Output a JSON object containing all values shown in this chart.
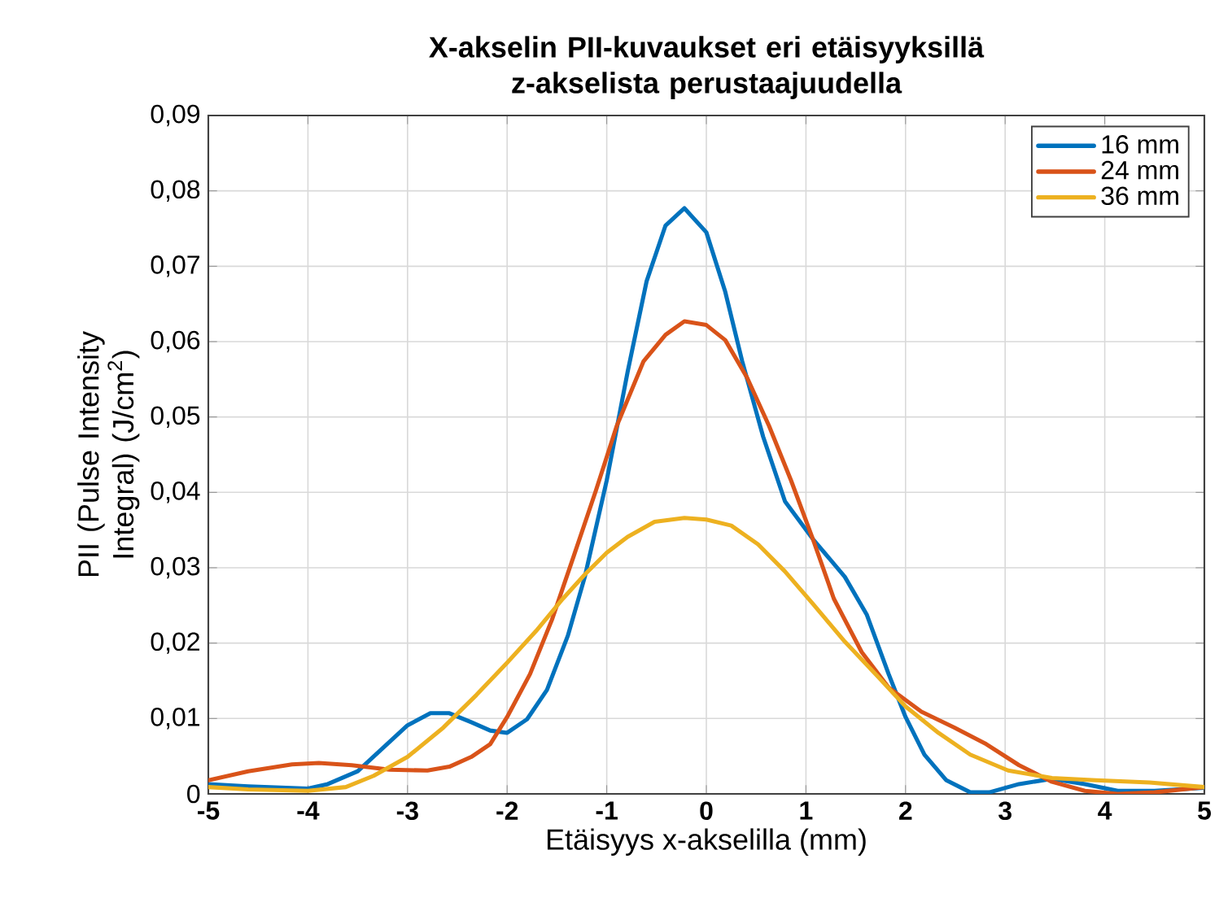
{
  "chart_data": {
    "type": "line",
    "title": "X-akselin PII-kuvaukset eri etäisyyksillä z-akselista perustaajuudella",
    "xlabel": "Etäisyys x-akselilla (mm)",
    "ylabel": "PII (Pulse Intensity Integral) (J/cm$^{2}$)",
    "xlim": [
      -5,
      5
    ],
    "xticks": [
      -5,
      -4,
      -3,
      -2,
      -1,
      0,
      1,
      2,
      3,
      4,
      5
    ],
    "ylim": [
      0,
      0.09
    ],
    "yticks": [
      0,
      {
        "value": 0.01,
        "label": "0,01"
      },
      {
        "value": 0.02,
        "label": "0,02"
      },
      {
        "value": 0.03,
        "label": "0,03"
      },
      {
        "value": 0.04,
        "label": "0,04"
      },
      {
        "value": 0.05,
        "label": "0,05"
      },
      {
        "value": 0.06,
        "label": "0,06"
      },
      {
        "value": 0.07,
        "label": "0,07"
      },
      {
        "value": 0.08,
        "label": "0,08"
      },
      {
        "value": 0.09,
        "label": "0,09"
      }
    ],
    "grid": true,
    "legend": "top right",
    "line_style": "solid",
    "series": [
      {
        "name": "16 mm",
        "color": "#0072bd",
        "x": [
          -5,
          -4.6,
          -4,
          -3.8,
          -3.5,
          -3.23,
          -3,
          -2.77,
          -2.58,
          -2.36,
          -2.17,
          -2,
          -1.8,
          -1.6,
          -1.39,
          -1.22,
          -1,
          -0.79,
          -0.6,
          -0.41,
          -0.22,
          0,
          0.19,
          0.36,
          0.57,
          0.79,
          1.07,
          1.39,
          1.61,
          1.83,
          2.0,
          2.19,
          2.41,
          2.65,
          2.84,
          3.14,
          3.47,
          3.8,
          4.13,
          4.5,
          5
        ],
        "values": [
          0.0013,
          0.001,
          0.0007,
          0.0013,
          0.003,
          0.0063,
          0.0091,
          0.0107,
          0.0107,
          0.0095,
          0.0084,
          0.0081,
          0.0099,
          0.0138,
          0.021,
          0.0288,
          0.0416,
          0.056,
          0.068,
          0.0754,
          0.0777,
          0.0745,
          0.0666,
          0.0574,
          0.0474,
          0.0388,
          0.0338,
          0.0288,
          0.0238,
          0.0159,
          0.0102,
          0.0052,
          0.0018,
          0.0002,
          0.0002,
          0.0013,
          0.002,
          0.0013,
          0.0004,
          0.0004,
          0.0008
        ]
      },
      {
        "name": "24 mm",
        "color": "#d95319",
        "x": [
          -5,
          -4.6,
          -4.16,
          -3.89,
          -3.56,
          -3.18,
          -2.8,
          -2.58,
          -2.36,
          -2.17,
          -2,
          -1.77,
          -1.55,
          -1.33,
          -1.11,
          -0.9,
          -0.63,
          -0.41,
          -0.22,
          0,
          0.19,
          0.41,
          0.63,
          0.85,
          1.07,
          1.28,
          1.56,
          1.83,
          2.16,
          2.49,
          2.81,
          3.14,
          3.47,
          3.8,
          4.13,
          4.5,
          5
        ],
        "values": [
          0.0018,
          0.003,
          0.0039,
          0.0041,
          0.0038,
          0.0032,
          0.0031,
          0.0036,
          0.0049,
          0.0066,
          0.0102,
          0.0159,
          0.0231,
          0.0316,
          0.0402,
          0.0488,
          0.0574,
          0.0609,
          0.0627,
          0.0622,
          0.0602,
          0.0552,
          0.0488,
          0.0416,
          0.0338,
          0.0259,
          0.0188,
          0.0141,
          0.0109,
          0.0088,
          0.0066,
          0.0038,
          0.0016,
          0.0004,
          0,
          0.0002,
          0.0009
        ]
      },
      {
        "name": "36 mm",
        "color": "#edb120",
        "x": [
          -5,
          -4.6,
          -4,
          -3.62,
          -3.34,
          -3,
          -2.64,
          -2.31,
          -2,
          -1.71,
          -1.44,
          -1.22,
          -1,
          -0.79,
          -0.52,
          -0.22,
          0,
          0.25,
          0.52,
          0.79,
          1.07,
          1.39,
          1.72,
          2,
          2.33,
          2.65,
          3.03,
          3.47,
          3.91,
          4.45,
          5
        ],
        "values": [
          0.0009,
          0.0006,
          0.0004,
          0.0009,
          0.0024,
          0.0049,
          0.0088,
          0.0131,
          0.0174,
          0.0216,
          0.0259,
          0.0291,
          0.032,
          0.0341,
          0.0361,
          0.0366,
          0.0364,
          0.0356,
          0.0331,
          0.0295,
          0.0252,
          0.0202,
          0.0156,
          0.0116,
          0.0081,
          0.0052,
          0.0031,
          0.0021,
          0.0018,
          0.0015,
          0.0009
        ]
      }
    ]
  }
}
